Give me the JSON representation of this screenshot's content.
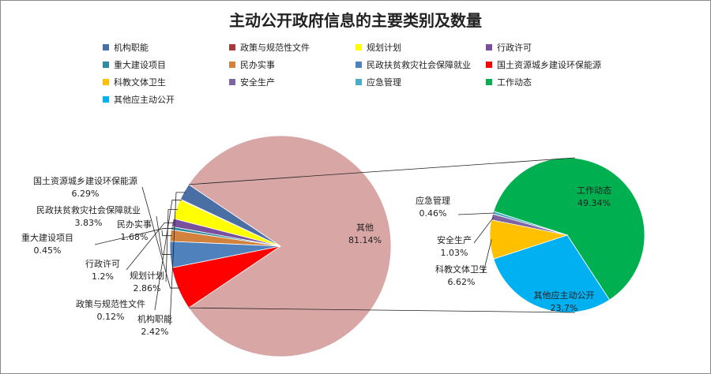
{
  "chart_data": {
    "type": "pie",
    "title": "主动公开政府信息的主要类别及数量",
    "legend_position": "top",
    "categories": [
      "机构职能",
      "政策与规范性文件",
      "规划计划",
      "行政许可",
      "重大建设项目",
      "民办实事",
      "民政扶贫救灾社会保障就业",
      "国土资源城乡建设环保能源",
      "科教文体卫生",
      "安全生产",
      "应急管理",
      "工作动态",
      "其他应主动公开"
    ],
    "colors": [
      "#4a6fa5",
      "#a23b3b",
      "#ffff00",
      "#7a4f9e",
      "#2e8ba0",
      "#d2823c",
      "#4f81bd",
      "#ff0000",
      "#ffc000",
      "#8064a2",
      "#4bacc6",
      "#00b050",
      "#00b0f0"
    ],
    "main_pie": {
      "slices": [
        {
          "name": "其他",
          "value": 81.14,
          "label": "81.14%",
          "color": "#d9a6a6"
        },
        {
          "name": "机构职能",
          "value": 2.42,
          "label": "2.42%",
          "color": "#4a6fa5"
        },
        {
          "name": "政策与规范性文件",
          "value": 0.12,
          "label": "0.12%",
          "color": "#a23b3b"
        },
        {
          "name": "规划计划",
          "value": 2.86,
          "label": "2.86%",
          "color": "#ffff00"
        },
        {
          "name": "行政许可",
          "value": 1.2,
          "label": "1.2%",
          "color": "#7a4f9e"
        },
        {
          "name": "重大建设项目",
          "value": 0.45,
          "label": "0.45%",
          "color": "#2e8ba0"
        },
        {
          "name": "民办实事",
          "value": 1.68,
          "label": "1.68%",
          "color": "#d2823c"
        },
        {
          "name": "民政扶贫救灾社会保障就业",
          "value": 3.83,
          "label": "3.83%",
          "color": "#4f81bd"
        },
        {
          "name": "国土资源城乡建设环保能源",
          "value": 6.29,
          "label": "6.29%",
          "color": "#ff0000"
        }
      ]
    },
    "secondary_pie": {
      "slices": [
        {
          "name": "工作动态",
          "value": 49.34,
          "label": "49.34%",
          "color": "#00b050"
        },
        {
          "name": "其他应主动公开",
          "value": 23.7,
          "label": "23.7%",
          "color": "#00b0f0"
        },
        {
          "name": "科教文体卫生",
          "value": 6.62,
          "label": "6.62%",
          "color": "#ffc000"
        },
        {
          "name": "安全生产",
          "value": 1.03,
          "label": "1.03%",
          "color": "#8064a2"
        },
        {
          "name": "应急管理",
          "value": 0.46,
          "label": "0.46%",
          "color": "#4bacc6"
        }
      ]
    }
  }
}
